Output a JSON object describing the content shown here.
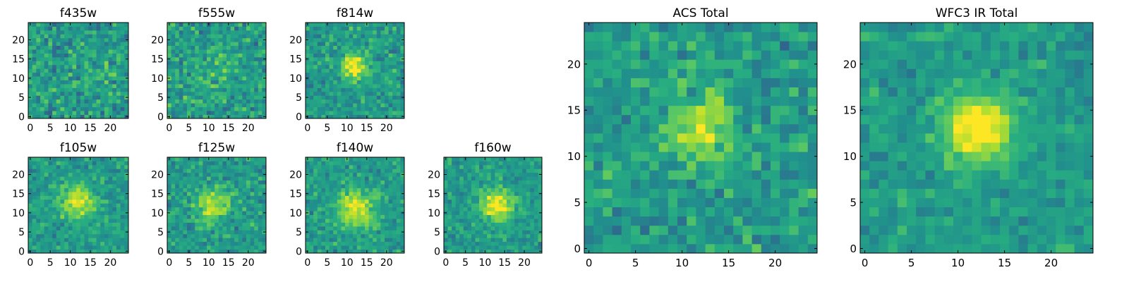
{
  "chart_data": [
    {
      "type": "heatmap",
      "title": "f435w",
      "size": 25,
      "peak": [
        13,
        12
      ],
      "sigma": 3.5,
      "amp": 0.05,
      "noise": 0.3,
      "xticks": [
        0,
        5,
        10,
        15,
        20
      ],
      "yticks": [
        0,
        5,
        10,
        15,
        20
      ],
      "xlim": [
        0,
        24
      ],
      "ylim": [
        0,
        24
      ],
      "colormap": "viridis",
      "grid": false,
      "legend": "none"
    },
    {
      "type": "heatmap",
      "title": "f555w",
      "size": 25,
      "peak": [
        12,
        12
      ],
      "sigma": 3.5,
      "amp": 0.1,
      "noise": 0.3,
      "xticks": [
        0,
        5,
        10,
        15,
        20
      ],
      "yticks": [
        0,
        5,
        10,
        15,
        20
      ],
      "xlim": [
        0,
        24
      ],
      "ylim": [
        0,
        24
      ],
      "colormap": "viridis",
      "grid": false,
      "legend": "none"
    },
    {
      "type": "heatmap",
      "title": "f814w",
      "size": 25,
      "peak": [
        12,
        13
      ],
      "sigma": 2.5,
      "amp": 0.45,
      "noise": 0.25,
      "xticks": [
        0,
        5,
        10,
        15,
        20
      ],
      "yticks": [
        0,
        5,
        10,
        15,
        20
      ],
      "xlim": [
        0,
        24
      ],
      "ylim": [
        0,
        24
      ],
      "colormap": "viridis",
      "grid": false,
      "legend": "none"
    },
    {
      "type": "heatmap",
      "title": "f105w",
      "size": 25,
      "peak": [
        12,
        13
      ],
      "sigma": 3.0,
      "amp": 0.45,
      "noise": 0.22,
      "xticks": [
        0,
        5,
        10,
        15,
        20
      ],
      "yticks": [
        0,
        5,
        10,
        15,
        20
      ],
      "xlim": [
        0,
        24
      ],
      "ylim": [
        0,
        24
      ],
      "colormap": "viridis",
      "grid": false,
      "legend": "none"
    },
    {
      "type": "heatmap",
      "title": "f125w",
      "size": 25,
      "peak": [
        11,
        12
      ],
      "sigma": 3.0,
      "amp": 0.35,
      "noise": 0.25,
      "xticks": [
        0,
        5,
        10,
        15,
        20
      ],
      "yticks": [
        0,
        5,
        10,
        15,
        20
      ],
      "xlim": [
        0,
        24
      ],
      "ylim": [
        0,
        24
      ],
      "colormap": "viridis",
      "grid": false,
      "legend": "none"
    },
    {
      "type": "heatmap",
      "title": "f140w",
      "size": 25,
      "peak": [
        12,
        11
      ],
      "sigma": 3.5,
      "amp": 0.4,
      "noise": 0.22,
      "xticks": [
        0,
        5,
        10,
        15,
        20
      ],
      "yticks": [
        0,
        5,
        10,
        15,
        20
      ],
      "xlim": [
        0,
        24
      ],
      "ylim": [
        0,
        24
      ],
      "colormap": "viridis",
      "grid": false,
      "legend": "none"
    },
    {
      "type": "heatmap",
      "title": "f160w",
      "size": 25,
      "peak": [
        13,
        12
      ],
      "sigma": 3.0,
      "amp": 0.45,
      "noise": 0.2,
      "xticks": [
        0,
        5,
        10,
        15,
        20
      ],
      "yticks": [
        0,
        5,
        10,
        15,
        20
      ],
      "xlim": [
        0,
        24
      ],
      "ylim": [
        0,
        24
      ],
      "colormap": "viridis",
      "grid": false,
      "legend": "none"
    },
    {
      "type": "heatmap",
      "title": "ACS Total",
      "size": 25,
      "peak": [
        12,
        13
      ],
      "sigma": 2.5,
      "amp": 0.35,
      "noise": 0.25,
      "xticks": [
        0,
        5,
        10,
        15,
        20
      ],
      "yticks": [
        0,
        5,
        10,
        15,
        20
      ],
      "xlim": [
        0,
        24
      ],
      "ylim": [
        0,
        24
      ],
      "colormap": "viridis",
      "grid": false,
      "legend": "none"
    },
    {
      "type": "heatmap",
      "title": "WFC3 IR Total",
      "size": 25,
      "peak": [
        12,
        13
      ],
      "sigma": 2.5,
      "amp": 0.55,
      "noise": 0.18,
      "xticks": [
        0,
        5,
        10,
        15,
        20
      ],
      "yticks": [
        0,
        5,
        10,
        15,
        20
      ],
      "xlim": [
        0,
        24
      ],
      "ylim": [
        0,
        24
      ],
      "colormap": "viridis",
      "grid": false,
      "legend": "none"
    }
  ]
}
